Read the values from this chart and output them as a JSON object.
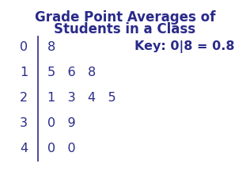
{
  "title_line1": "Grade Point Averages of",
  "title_line2": "Students in a Class",
  "title_fontsize": 12,
  "stems": [
    "0",
    "1",
    "2",
    "3",
    "4"
  ],
  "leaves": [
    "8",
    "5   6   8",
    "1   3   4   5",
    "0   9",
    "0   0"
  ],
  "key_text": "Key: 0|8 = 0.8",
  "font_color": "#2a2a8a",
  "font_size": 11.5,
  "background_color": "#ffffff",
  "fig_width": 3.16,
  "fig_height": 2.31,
  "dpi": 100
}
